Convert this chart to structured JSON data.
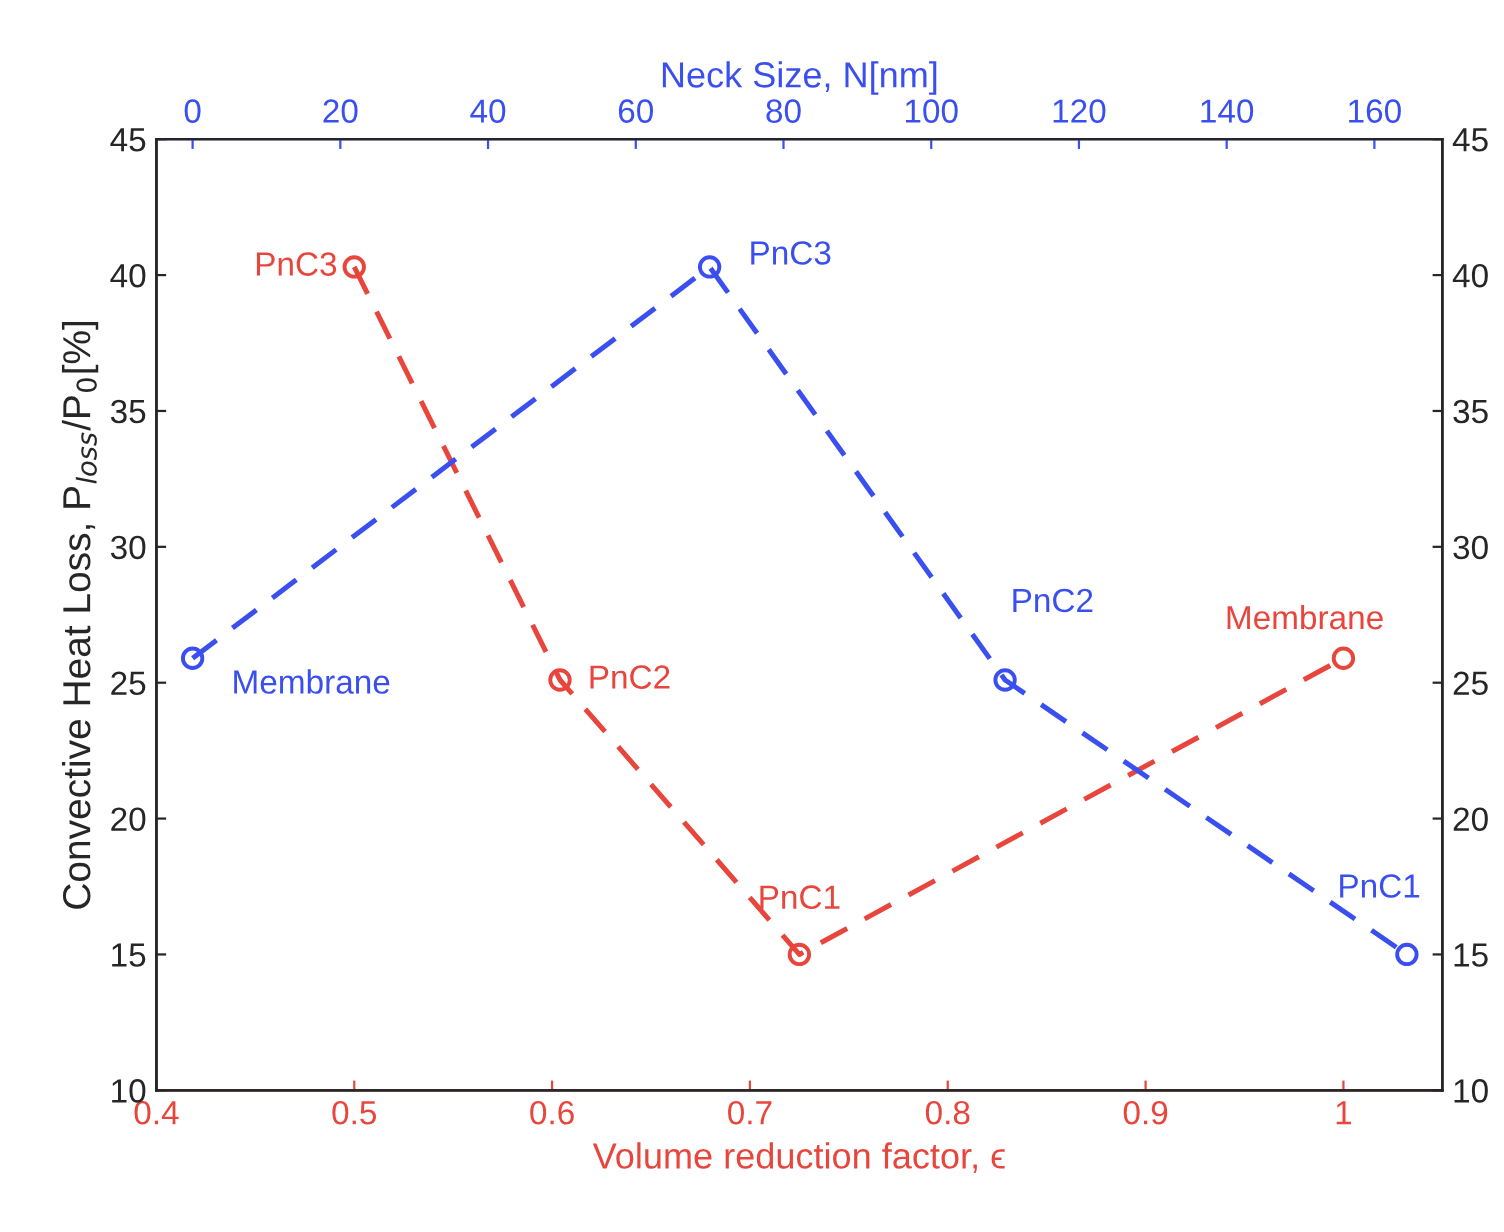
{
  "chart_data": {
    "type": "line",
    "xlabel": "Volume reduction factor, ϵ",
    "x2label": "Neck Size, N[nm]",
    "ylabel": "Convective Heat Loss, P$_{loss}$/P$_{0}$[%]",
    "xlim": [
      0.4,
      1.05
    ],
    "xticks": [
      {
        "value": 0.4,
        "label": "0.4"
      },
      {
        "value": 0.5,
        "label": "0.5"
      },
      {
        "value": 0.6,
        "label": "0.6"
      },
      {
        "value": 0.7,
        "label": "0.7"
      },
      {
        "value": 0.8,
        "label": "0.8"
      },
      {
        "value": 0.9,
        "label": "0.9"
      },
      1
    ],
    "x2lim": [
      -4.9,
      169.2
    ],
    "x2ticks": [
      0,
      20,
      40,
      60,
      80,
      100,
      120,
      140,
      160
    ],
    "ylim": [
      10,
      45
    ],
    "yticks": [
      10,
      15,
      20,
      25,
      30,
      35,
      40,
      45
    ],
    "y2lim": [
      10,
      45
    ],
    "y2ticks": [
      10,
      15,
      20,
      25,
      30,
      35,
      40,
      45
    ],
    "marker": "circle",
    "line_style": "dashed",
    "grid": false,
    "legend": false,
    "series": [
      {
        "color": "#e8453c",
        "x": [
          0.5,
          0.604,
          0.725,
          1.0
        ],
        "values": [
          40.3,
          25.1,
          15.0,
          25.9
        ],
        "value_labels": [
          "PnC3",
          "PnC2",
          "PnC1",
          "Membrane"
        ]
      },
      {
        "color": "#3a4ff0",
        "axis": "x2",
        "x": [
          0,
          70,
          110,
          164.4
        ],
        "values": [
          25.9,
          40.3,
          25.1,
          15.0
        ],
        "value_labels": [
          "Membrane",
          "PnC3",
          "PnC2",
          "PnC1"
        ]
      }
    ]
  }
}
